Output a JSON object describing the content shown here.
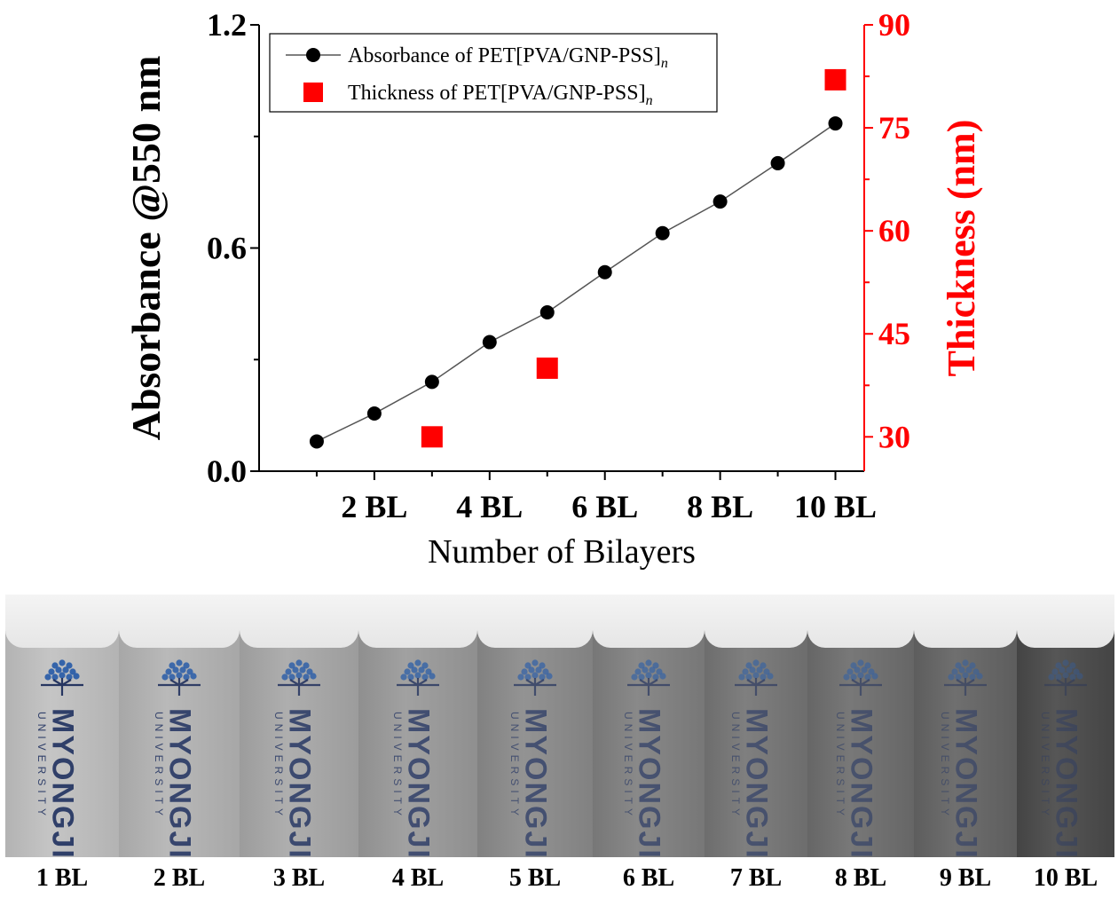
{
  "chart_data": {
    "type": "line",
    "x": [
      1,
      2,
      3,
      4,
      5,
      6,
      7,
      8,
      9,
      10
    ],
    "xlim": [
      0,
      10.5
    ],
    "x_ticks": [
      2,
      4,
      6,
      8,
      10
    ],
    "x_tick_labels": [
      "2 BL",
      "4 BL",
      "6 BL",
      "8 BL",
      "10 BL"
    ],
    "xlabel": "Number of Bilayers",
    "ylabel": "Absorbance @550 nm",
    "ylim": [
      0,
      1.2
    ],
    "y_ticks": [
      "0.0",
      "0.6",
      "1.2"
    ],
    "y2label": "Thickness (nm)",
    "y2lim": [
      25,
      90
    ],
    "y2_ticks": [
      "30",
      "45",
      "60",
      "75",
      "90"
    ],
    "legend": "top-left",
    "grid": false,
    "series": [
      {
        "name": "Absorbance of PET[PVA/GNP-PSS]",
        "name_subscript": "n",
        "axis": "left",
        "marker": "circle",
        "color": "#000000",
        "x": [
          1,
          2,
          3,
          4,
          5,
          6,
          7,
          8,
          9,
          10
        ],
        "values": [
          0.08,
          0.155,
          0.24,
          0.347,
          0.427,
          0.535,
          0.64,
          0.725,
          0.828,
          0.935
        ]
      },
      {
        "name": "Thickness of PET[PVA/GNP-PSS]",
        "name_subscript": "n",
        "axis": "right",
        "marker": "square",
        "color": "#ff0000",
        "x": [
          3,
          5,
          10
        ],
        "values": [
          30,
          40,
          82
        ]
      }
    ]
  },
  "photo": {
    "samples": [
      {
        "label": "1 BL",
        "tint": 0.05,
        "width": 128
      },
      {
        "label": "2 BL",
        "tint": 0.12,
        "width": 136
      },
      {
        "label": "3 BL",
        "tint": 0.18,
        "width": 134
      },
      {
        "label": "4 BL",
        "tint": 0.26,
        "width": 134
      },
      {
        "label": "5 BL",
        "tint": 0.34,
        "width": 130
      },
      {
        "label": "6 BL",
        "tint": 0.4,
        "width": 126
      },
      {
        "label": "7 BL",
        "tint": 0.46,
        "width": 116
      },
      {
        "label": "8 BL",
        "tint": 0.5,
        "width": 120
      },
      {
        "label": "9 BL",
        "tint": 0.55,
        "width": 116
      },
      {
        "label": "10 BL",
        "tint": 0.7,
        "width": 110
      }
    ],
    "brand_word": "MYONGJI",
    "brand_sub": "UNIVERSITY"
  }
}
